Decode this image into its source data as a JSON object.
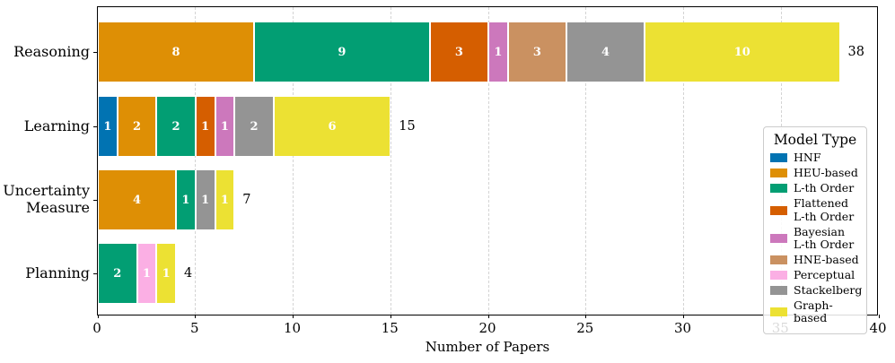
{
  "chart_data": {
    "type": "bar",
    "orientation": "horizontal",
    "stacked": true,
    "title": "",
    "xlabel": "Number of Papers",
    "ylabel": "",
    "xlim": [
      0,
      40
    ],
    "xticks": [
      0,
      5,
      10,
      15,
      20,
      25,
      30,
      35,
      40
    ],
    "grid": "vertical dashed gridlines at x ticks, behind bars",
    "legend_position": "right, inside plot",
    "categories": [
      "Reasoning",
      "Learning",
      "Uncertainty\nMeasure",
      "Planning"
    ],
    "legend": {
      "title": "Model Type",
      "entries": [
        {
          "name": "HNF",
          "label": "HNF",
          "color": "#0173b2"
        },
        {
          "name": "HEU-based",
          "label": "HEU-based",
          "color": "#de8f05"
        },
        {
          "name": "L-th Order",
          "label": "L-th Order",
          "color": "#029e73"
        },
        {
          "name": "Flattened L-th Order",
          "label": "Flattened\nL-th Order",
          "color": "#d55e00"
        },
        {
          "name": "Bayesian L-th Order",
          "label": "Bayesian\nL-th Order",
          "color": "#cc78bc"
        },
        {
          "name": "HNE-based",
          "label": "HNE-based",
          "color": "#ca9161"
        },
        {
          "name": "Perceptual",
          "label": "Perceptual",
          "color": "#fbafe4"
        },
        {
          "name": "Stackelberg",
          "label": "Stackelberg",
          "color": "#949494"
        },
        {
          "name": "Graph-based",
          "label": "Graph-based",
          "color": "#ece133"
        }
      ]
    },
    "bars": [
      {
        "category": "Reasoning",
        "total": 38,
        "segments": [
          {
            "name": "HEU-based",
            "value": 8
          },
          {
            "name": "L-th Order",
            "value": 9
          },
          {
            "name": "Flattened L-th Order",
            "value": 3
          },
          {
            "name": "Bayesian L-th Order",
            "value": 1
          },
          {
            "name": "HNE-based",
            "value": 3
          },
          {
            "name": "Stackelberg",
            "value": 4
          },
          {
            "name": "Graph-based",
            "value": 10
          }
        ]
      },
      {
        "category": "Learning",
        "total": 15,
        "segments": [
          {
            "name": "HNF",
            "value": 1
          },
          {
            "name": "HEU-based",
            "value": 2
          },
          {
            "name": "L-th Order",
            "value": 2
          },
          {
            "name": "Flattened L-th Order",
            "value": 1
          },
          {
            "name": "Bayesian L-th Order",
            "value": 1
          },
          {
            "name": "Stackelberg",
            "value": 2
          },
          {
            "name": "Graph-based",
            "value": 6
          }
        ]
      },
      {
        "category": "Uncertainty\nMeasure",
        "total": 7,
        "segments": [
          {
            "name": "HEU-based",
            "value": 4
          },
          {
            "name": "L-th Order",
            "value": 1
          },
          {
            "name": "Stackelberg",
            "value": 1
          },
          {
            "name": "Graph-based",
            "value": 1
          }
        ]
      },
      {
        "category": "Planning",
        "total": 4,
        "segments": [
          {
            "name": "L-th Order",
            "value": 2
          },
          {
            "name": "Perceptual",
            "value": 1
          },
          {
            "name": "Graph-based",
            "value": 1
          }
        ]
      }
    ],
    "styles": {
      "segment_value_label_color": "#ffffff",
      "axis_color": "#000000",
      "gridline_color": "#d4d4d4"
    }
  }
}
